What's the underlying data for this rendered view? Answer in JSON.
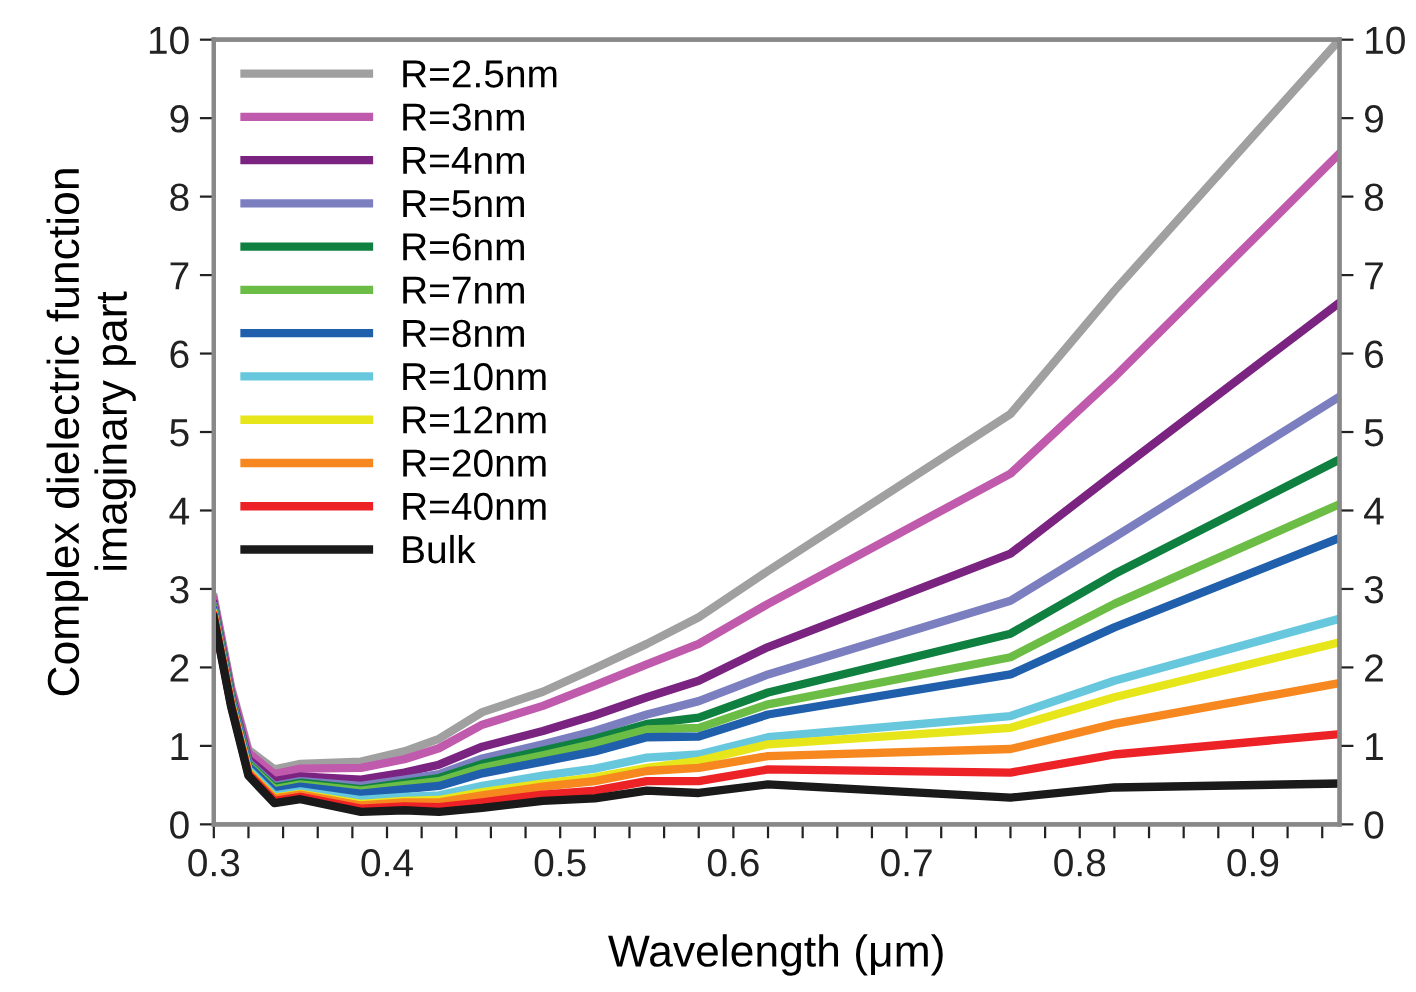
{
  "chart_data": {
    "type": "line",
    "xlabel": "Wavelength (μm)",
    "ylabel": "Complex dielectric function\nimaginary part",
    "x": [
      0.3,
      0.31,
      0.32,
      0.335,
      0.35,
      0.385,
      0.41,
      0.43,
      0.455,
      0.49,
      0.52,
      0.55,
      0.58,
      0.62,
      0.76,
      0.82,
      0.95
    ],
    "series": [
      {
        "name": "R=2.5nm",
        "color": "#a0a0a0",
        "values": [
          2.89,
          1.75,
          0.95,
          0.7,
          0.77,
          0.8,
          0.93,
          1.09,
          1.43,
          1.69,
          1.99,
          2.3,
          2.64,
          3.23,
          5.23,
          6.8,
          10.0
        ]
      },
      {
        "name": "R=3nm",
        "color": "#c05aac",
        "values": [
          2.86,
          1.72,
          0.91,
          0.64,
          0.71,
          0.72,
          0.83,
          0.97,
          1.27,
          1.51,
          1.77,
          2.04,
          2.3,
          2.81,
          4.47,
          5.7,
          8.55
        ]
      },
      {
        "name": "R=4nm",
        "color": "#7b2380",
        "values": [
          2.8,
          1.66,
          0.83,
          0.55,
          0.61,
          0.57,
          0.66,
          0.76,
          0.99,
          1.19,
          1.39,
          1.62,
          1.83,
          2.26,
          3.45,
          4.47,
          6.65
        ]
      },
      {
        "name": "R=5nm",
        "color": "#7b7fc0",
        "values": [
          2.77,
          1.63,
          0.79,
          0.49,
          0.55,
          0.49,
          0.57,
          0.64,
          0.84,
          1.02,
          1.19,
          1.4,
          1.57,
          1.91,
          2.85,
          3.66,
          5.45
        ]
      },
      {
        "name": "R=6nm",
        "color": "#0f8040",
        "values": [
          2.75,
          1.62,
          0.77,
          0.47,
          0.53,
          0.45,
          0.53,
          0.59,
          0.77,
          0.94,
          1.09,
          1.28,
          1.36,
          1.68,
          2.43,
          3.19,
          4.65
        ]
      },
      {
        "name": "R=7nm",
        "color": "#6cbd45",
        "values": [
          2.74,
          1.61,
          0.76,
          0.45,
          0.51,
          0.43,
          0.5,
          0.55,
          0.72,
          0.88,
          1.03,
          1.21,
          1.23,
          1.53,
          2.13,
          2.81,
          4.08
        ]
      },
      {
        "name": "R=8nm",
        "color": "#1f5fab",
        "values": [
          2.72,
          1.59,
          0.74,
          0.42,
          0.48,
          0.39,
          0.45,
          0.49,
          0.65,
          0.8,
          0.93,
          1.11,
          1.12,
          1.4,
          1.91,
          2.51,
          3.65
        ]
      },
      {
        "name": "R=10nm",
        "color": "#67c8dd",
        "values": [
          2.69,
          1.56,
          0.7,
          0.37,
          0.42,
          0.31,
          0.35,
          0.37,
          0.49,
          0.62,
          0.71,
          0.85,
          0.89,
          1.11,
          1.38,
          1.83,
          2.62
        ]
      },
      {
        "name": "R=12nm",
        "color": "#e6e61a",
        "values": [
          2.67,
          1.54,
          0.67,
          0.34,
          0.39,
          0.26,
          0.3,
          0.31,
          0.41,
          0.52,
          0.6,
          0.72,
          0.81,
          1.02,
          1.23,
          1.62,
          2.32
        ]
      },
      {
        "name": "R=20nm",
        "color": "#f7881f",
        "values": [
          2.66,
          1.53,
          0.66,
          0.33,
          0.38,
          0.24,
          0.28,
          0.28,
          0.37,
          0.48,
          0.55,
          0.68,
          0.72,
          0.87,
          0.96,
          1.28,
          1.8
        ]
      },
      {
        "name": "R=40nm",
        "color": "#ec2227",
        "values": [
          2.65,
          1.52,
          0.64,
          0.3,
          0.35,
          0.2,
          0.23,
          0.22,
          0.28,
          0.38,
          0.43,
          0.55,
          0.55,
          0.7,
          0.66,
          0.89,
          1.15
        ]
      },
      {
        "name": "Bulk",
        "color": "#1a1a1a",
        "values": [
          2.63,
          1.5,
          0.62,
          0.27,
          0.32,
          0.16,
          0.18,
          0.16,
          0.21,
          0.3,
          0.33,
          0.43,
          0.4,
          0.51,
          0.34,
          0.47,
          0.52
        ]
      }
    ],
    "xlim": [
      0.3,
      0.95
    ],
    "xticks": [
      0.3,
      {
        "value": 0.32,
        "label": null
      },
      {
        "value": 0.34,
        "label": null
      },
      {
        "value": 0.36,
        "label": null
      },
      {
        "value": 0.38,
        "label": null
      },
      0.4,
      {
        "value": 0.42,
        "label": null
      },
      {
        "value": 0.44,
        "label": null
      },
      {
        "value": 0.46,
        "label": null
      },
      {
        "value": 0.48,
        "label": null
      },
      0.5,
      {
        "value": 0.52,
        "label": null
      },
      {
        "value": 0.54,
        "label": null
      },
      {
        "value": 0.56,
        "label": null
      },
      {
        "value": 0.58,
        "label": null
      },
      0.6,
      {
        "value": 0.62,
        "label": null
      },
      {
        "value": 0.64,
        "label": null
      },
      {
        "value": 0.66,
        "label": null
      },
      {
        "value": 0.68,
        "label": null
      },
      0.7,
      {
        "value": 0.72,
        "label": null
      },
      {
        "value": 0.74,
        "label": null
      },
      {
        "value": 0.76,
        "label": null
      },
      {
        "value": 0.78,
        "label": null
      },
      0.8,
      {
        "value": 0.82,
        "label": null
      },
      {
        "value": 0.84,
        "label": null
      },
      {
        "value": 0.86,
        "label": null
      },
      {
        "value": 0.88,
        "label": null
      },
      0.9,
      {
        "value": 0.92,
        "label": null
      },
      {
        "value": 0.94,
        "label": null
      }
    ],
    "ylim": [
      0,
      10
    ],
    "yticks": [
      0,
      1,
      2,
      3,
      4,
      5,
      6,
      7,
      8,
      9,
      10
    ],
    "y2lim": [
      0,
      10
    ],
    "y2ticks": [
      0,
      1,
      2,
      3,
      4,
      5,
      6,
      7,
      8,
      9,
      10
    ],
    "grid": false,
    "legend": "top left",
    "marker": "none",
    "line_style": "solid"
  }
}
